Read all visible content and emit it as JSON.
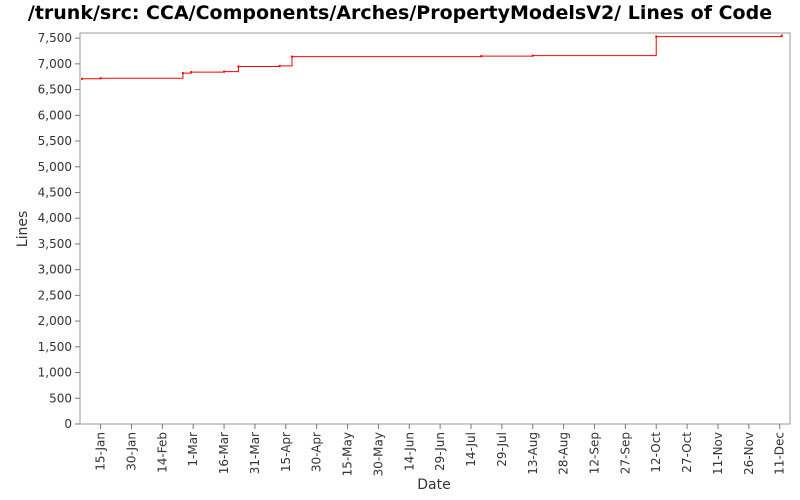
{
  "chart_data": {
    "type": "line",
    "title": "/trunk/src: CCA/Components/Arches/PropertyModelsV2/ Lines of Code",
    "xlabel": "Date",
    "ylabel": "Lines",
    "ylim": [
      0,
      7600
    ],
    "y_ticks": [
      0,
      500,
      1000,
      1500,
      2000,
      2500,
      3000,
      3500,
      4000,
      4500,
      5000,
      5500,
      6000,
      6500,
      7000,
      7500
    ],
    "y_tick_labels": [
      "0",
      "500",
      "1,000",
      "1,500",
      "2,000",
      "2,500",
      "3,000",
      "3,500",
      "4,000",
      "4,500",
      "5,000",
      "5,500",
      "6,000",
      "6,500",
      "7,000",
      "7,500"
    ],
    "x_tick_labels": [
      "15-Jan",
      "30-Jan",
      "14-Feb",
      "1-Mar",
      "16-Mar",
      "31-Mar",
      "15-Apr",
      "30-Apr",
      "15-May",
      "30-May",
      "14-Jun",
      "29-Jun",
      "14-Jul",
      "29-Jul",
      "13-Aug",
      "28-Aug",
      "12-Sep",
      "27-Sep",
      "12-Oct",
      "27-Oct",
      "11-Nov",
      "26-Nov",
      "11-Dec"
    ],
    "x_tick_days": [
      15,
      30,
      45,
      60,
      75,
      90,
      105,
      120,
      135,
      150,
      165,
      180,
      195,
      210,
      225,
      240,
      255,
      270,
      285,
      300,
      315,
      330,
      345
    ],
    "xlim_days": [
      5,
      350
    ],
    "series": [
      {
        "color": "#ff0000",
        "step": true,
        "x_days": [
          6,
          15,
          55,
          59,
          75,
          82,
          102,
          108,
          200,
          225,
          285,
          346
        ],
        "values": [
          6710,
          6720,
          6820,
          6840,
          6850,
          6950,
          6960,
          7140,
          7150,
          7160,
          7530,
          7550
        ]
      }
    ],
    "grid": false,
    "legend": "none"
  }
}
